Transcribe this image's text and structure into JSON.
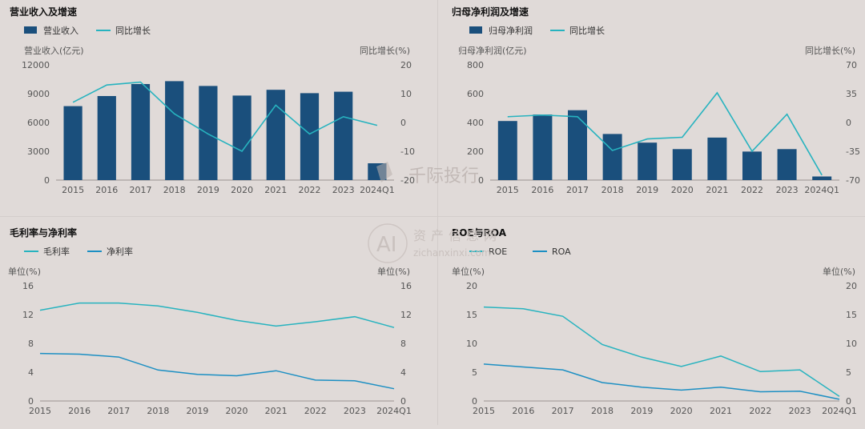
{
  "colors": {
    "bar": "#1a4f7c",
    "line_teal": "#27b3bf",
    "line_blue": "#1c8fc3",
    "axis_text": "#555555",
    "title_text": "#111111",
    "grid": "#cfc9c7"
  },
  "watermark": {
    "brand_cn": "千际投行",
    "logo_text": "AI",
    "sub_cn": "资产信息网",
    "url": "zichanxinxi.com"
  },
  "chart_data": [
    {
      "id": "revenue",
      "type": "bar+line",
      "title": "营业收入及增速",
      "legend": [
        "营业收入",
        "同比增长"
      ],
      "ylabel_left": "营业收入(亿元)",
      "ylabel_right": "同比增长(%)",
      "categories": [
        "2015",
        "2016",
        "2017",
        "2018",
        "2019",
        "2020",
        "2021",
        "2022",
        "2023",
        "2024Q1"
      ],
      "left_ticks": [
        "0",
        "3000",
        "6000",
        "9000",
        "12000"
      ],
      "right_ticks": [
        "-20",
        "-10",
        "0",
        "10",
        "20"
      ],
      "ylim_left": [
        0,
        12000
      ],
      "ylim_right": [
        -20,
        20
      ],
      "bars": [
        7700,
        8750,
        10000,
        10300,
        9800,
        8800,
        9400,
        9050,
        9200,
        1750
      ],
      "line": [
        7,
        13,
        14,
        3,
        -4,
        -10,
        6,
        -4,
        2,
        -1
      ]
    },
    {
      "id": "netprofit",
      "type": "bar+line",
      "title": "归母净利润及增速",
      "legend": [
        "归母净利润",
        "同比增长"
      ],
      "ylabel_left": "归母净利润(亿元)",
      "ylabel_right": "同比增长(%)",
      "categories": [
        "2015",
        "2016",
        "2017",
        "2018",
        "2019",
        "2020",
        "2021",
        "2022",
        "2023",
        "2024Q1"
      ],
      "left_ticks": [
        "0",
        "200",
        "400",
        "600",
        "800"
      ],
      "right_ticks": [
        "-70",
        "-35",
        "0",
        "35",
        "70"
      ],
      "ylim_left": [
        0,
        800
      ],
      "ylim_right": [
        -70,
        70
      ],
      "bars": [
        410,
        455,
        485,
        320,
        260,
        215,
        295,
        198,
        215,
        25
      ],
      "line": [
        7,
        9,
        7,
        -34,
        -20,
        -18,
        36,
        -35,
        10,
        -64
      ]
    },
    {
      "id": "margins",
      "type": "line",
      "title": "毛利率与净利率",
      "legend": [
        "毛利率",
        "净利率"
      ],
      "ylabel_left": "单位(%)",
      "ylabel_right": "单位(%)",
      "categories": [
        "2015",
        "2016",
        "2017",
        "2018",
        "2019",
        "2020",
        "2021",
        "2022",
        "2023",
        "2024Q1"
      ],
      "left_ticks": [
        "0",
        "4",
        "8",
        "12",
        "16"
      ],
      "right_ticks": [
        "0",
        "4",
        "8",
        "12",
        "16"
      ],
      "ylim": [
        0,
        16
      ],
      "series": [
        {
          "name": "毛利率",
          "values": [
            12.6,
            13.6,
            13.6,
            13.2,
            12.3,
            11.2,
            10.4,
            11.0,
            11.7,
            10.2
          ]
        },
        {
          "name": "净利率",
          "values": [
            6.6,
            6.5,
            6.1,
            4.3,
            3.7,
            3.5,
            4.2,
            2.9,
            2.8,
            1.7
          ]
        }
      ]
    },
    {
      "id": "roe",
      "type": "line",
      "title": "ROE与ROA",
      "legend": [
        "ROE",
        "ROA"
      ],
      "ylabel_left": "单位(%)",
      "ylabel_right": "单位(%)",
      "categories": [
        "2015",
        "2016",
        "2017",
        "2018",
        "2019",
        "2020",
        "2021",
        "2022",
        "2023",
        "2024Q1"
      ],
      "left_ticks": [
        "0",
        "5",
        "10",
        "15",
        "20"
      ],
      "right_ticks": [
        "0",
        "5",
        "10",
        "15",
        "20"
      ],
      "ylim": [
        0,
        20
      ],
      "series": [
        {
          "name": "ROE",
          "values": [
            16.3,
            16.0,
            14.7,
            9.8,
            7.6,
            6.0,
            7.8,
            5.1,
            5.4,
            0.8
          ]
        },
        {
          "name": "ROA",
          "values": [
            6.4,
            5.9,
            5.4,
            3.2,
            2.4,
            1.9,
            2.4,
            1.6,
            1.7,
            0.3
          ]
        }
      ]
    }
  ]
}
